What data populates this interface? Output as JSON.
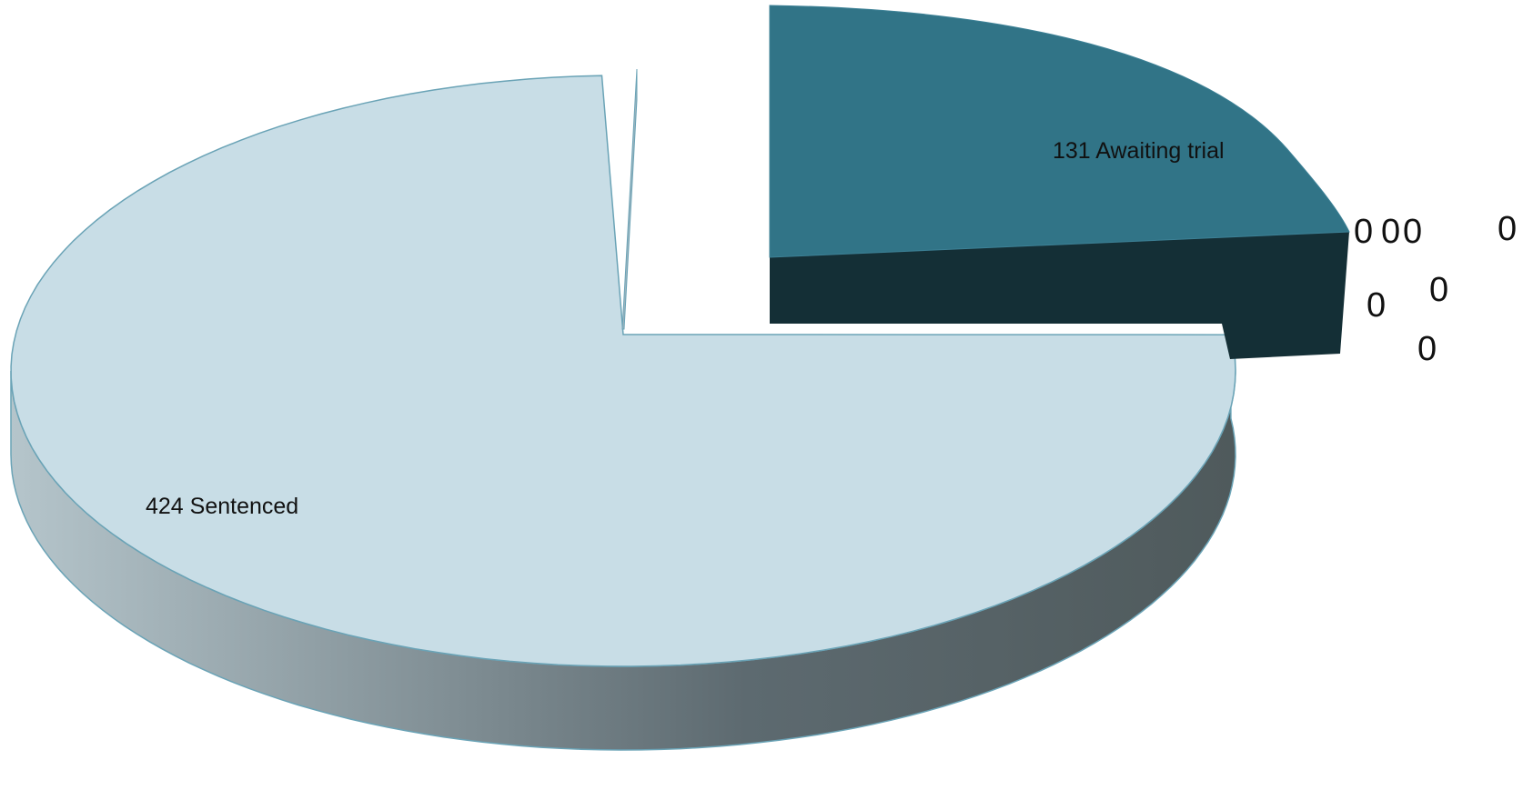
{
  "chart_data": {
    "type": "pie",
    "style": "3d-exploded",
    "slices": [
      {
        "label": "Sentenced",
        "value": 424,
        "display": "424 Sentenced",
        "color": "#c8dde6"
      },
      {
        "label": "Awaiting trial",
        "value": 131,
        "display": "131 Awaiting trial",
        "color": "#317487"
      }
    ],
    "zero_labels": [
      "0",
      "0",
      "0",
      "0",
      "0",
      "0",
      "0"
    ],
    "side_color_dark": "#4f5a5c",
    "side_color_light": "#b5c5cb",
    "awaiting_side_color": "#142f36",
    "outline_color": "#5f9bb0"
  }
}
